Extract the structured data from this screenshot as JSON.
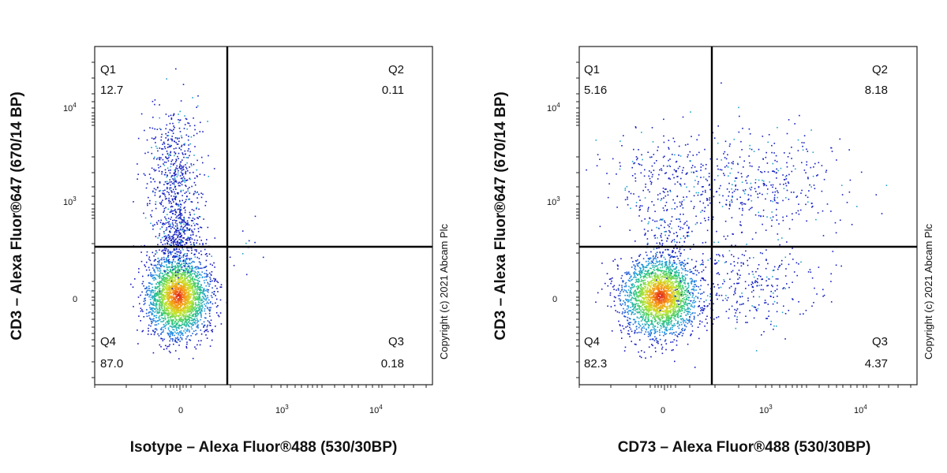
{
  "chart_data": [
    {
      "type": "scatter",
      "title": "",
      "xlabel": "Isotype – Alexa Fluor®488 (530/30BP)",
      "ylabel": "CD3 – Alexa Fluor®647 (670/14 BP)",
      "x_ticks": [
        {
          "base": "0",
          "exp": ""
        },
        {
          "base": "10",
          "exp": "3"
        },
        {
          "base": "10",
          "exp": "4"
        }
      ],
      "y_ticks": [
        {
          "base": "0",
          "exp": ""
        },
        {
          "base": "10",
          "exp": "3"
        },
        {
          "base": "10",
          "exp": "4"
        }
      ],
      "quadrants": [
        {
          "name": "Q1",
          "value": "12.7"
        },
        {
          "name": "Q2",
          "value": "0.11"
        },
        {
          "name": "Q3",
          "value": "0.18"
        },
        {
          "name": "Q4",
          "value": "87.0"
        }
      ],
      "copyright": "Copyright (c) 2021 Abcam Plc"
    },
    {
      "type": "scatter",
      "title": "",
      "xlabel": "CD73 – Alexa Fluor®488 (530/30BP)",
      "ylabel": "CD3 – Alexa Fluor®647 (670/14 BP)",
      "x_ticks": [
        {
          "base": "0",
          "exp": ""
        },
        {
          "base": "10",
          "exp": "3"
        },
        {
          "base": "10",
          "exp": "4"
        }
      ],
      "y_ticks": [
        {
          "base": "0",
          "exp": ""
        },
        {
          "base": "10",
          "exp": "3"
        },
        {
          "base": "10",
          "exp": "4"
        }
      ],
      "quadrants": [
        {
          "name": "Q1",
          "value": "5.16"
        },
        {
          "name": "Q2",
          "value": "8.18"
        },
        {
          "name": "Q3",
          "value": "4.37"
        },
        {
          "name": "Q4",
          "value": "82.3"
        }
      ],
      "copyright": "Copyright (c) 2021 Abcam Plc"
    }
  ]
}
